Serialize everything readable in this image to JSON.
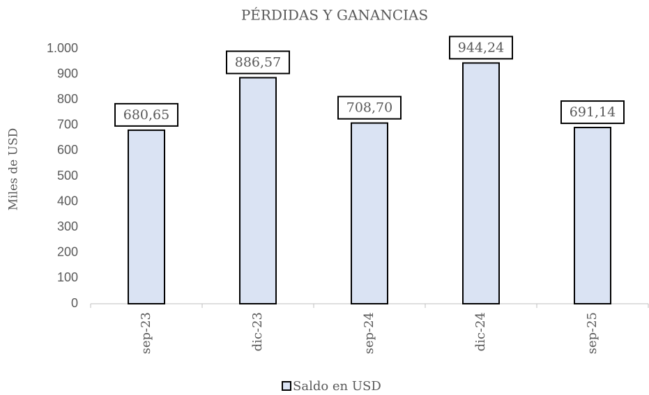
{
  "chart_data": {
    "type": "bar",
    "title": "PÉRDIDAS Y GANANCIAS",
    "y_label": "Miles de USD",
    "categories": [
      "sep-23",
      "dic-23",
      "sep-24",
      "dic-24",
      "sep-25"
    ],
    "series": [
      {
        "name": "Saldo en USD",
        "color": "#dae3f3",
        "values": [
          680.65,
          886.57,
          708.7,
          944.24,
          691.14
        ],
        "value_labels": [
          "680,65",
          "886,57",
          "708,70",
          "944,24",
          "691,14"
        ]
      }
    ],
    "ylim": [
      0,
      1000
    ],
    "yticks": [
      0,
      100,
      200,
      300,
      400,
      500,
      600,
      700,
      800,
      900,
      {
        "value": 1000,
        "label": "1.000"
      }
    ],
    "grid": false,
    "legend": "bottom"
  }
}
